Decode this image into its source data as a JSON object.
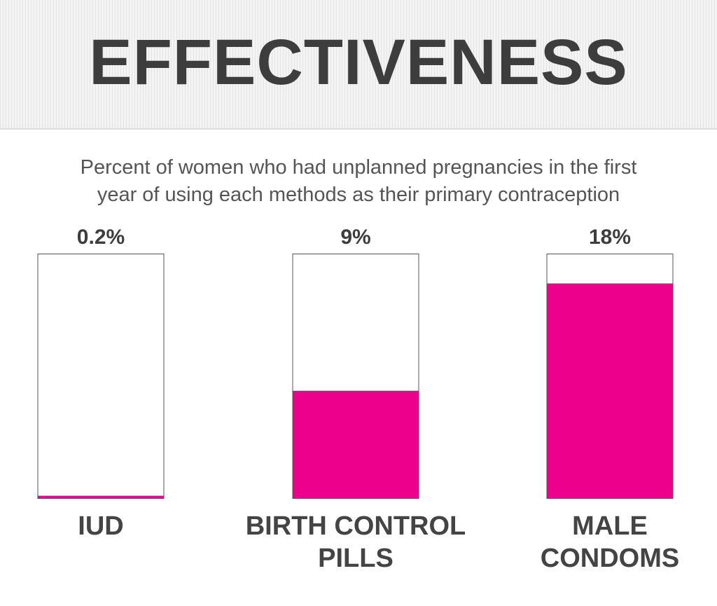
{
  "header": {
    "title": "EFFECTIVENESS"
  },
  "subtitle_lines": [
    "Percent of women who had unplanned pregnancies in the first",
    "year of using each methods as their primary contraception"
  ],
  "chart_data": {
    "type": "bar",
    "title": "EFFECTIVENESS",
    "subtitle": "Percent of women who had unplanned pregnancies in the first year of using each methods as their primary contraception",
    "categories": [
      [
        "IUD"
      ],
      [
        "BIRTH CONTROL",
        "PILLS"
      ],
      [
        "MALE",
        "CONDOMS"
      ]
    ],
    "values": [
      0.2,
      9,
      18
    ],
    "value_labels": [
      "0.2%",
      "9%",
      "18%"
    ],
    "ylim": [
      0,
      20.5
    ],
    "grid": false,
    "colors": {
      "fill": "#ec008c",
      "outline": "#555555",
      "text": "#3d3d3d"
    }
  }
}
